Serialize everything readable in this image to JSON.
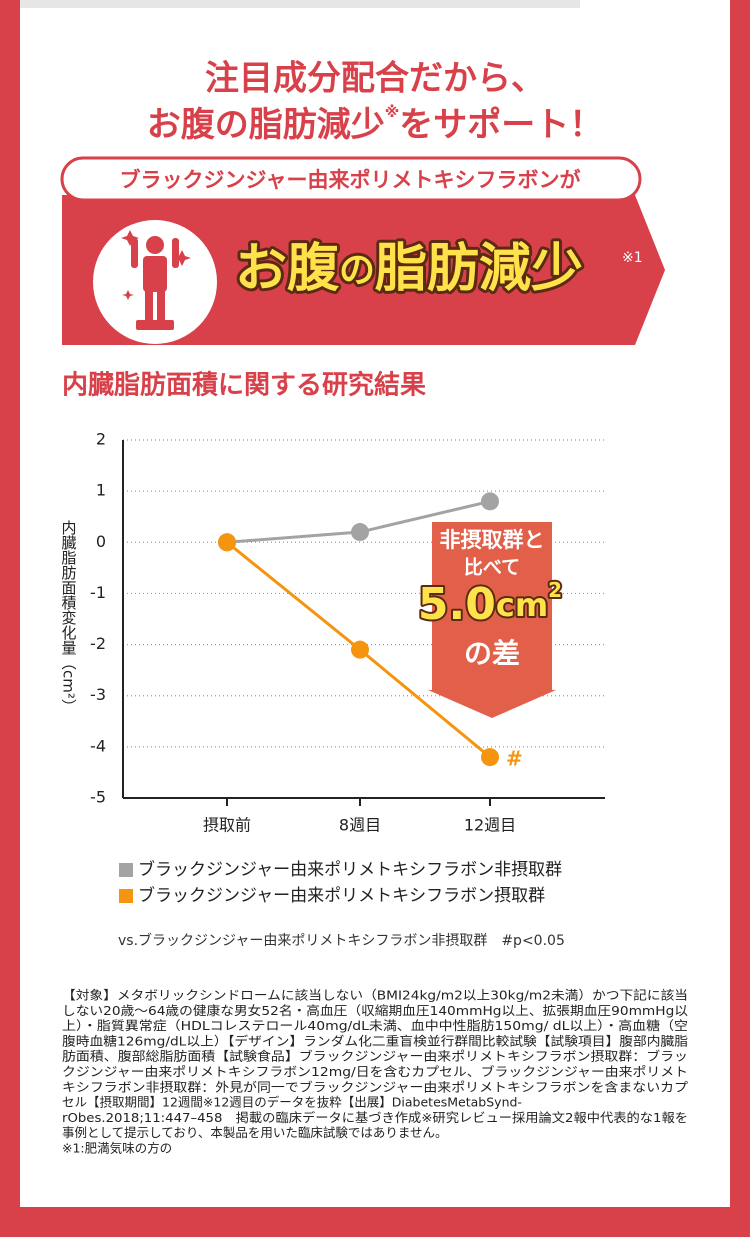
{
  "header": {
    "line1": "注目成分配合だから、",
    "line2a": "お腹の脂肪減少",
    "note_mark": "※",
    "line2b": "をサポート！"
  },
  "banner": {
    "subtitle": "ブラックジンジャー由来ポリメトキシフラボンが",
    "headline_a": "お腹",
    "headline_b": "の",
    "headline_c": "脂肪減少",
    "note": "※1"
  },
  "chart_data": {
    "type": "line",
    "title": "内臓脂肪面積に関する研究結果",
    "y_label": "内臓脂肪面積変化量（cm²）",
    "categories": [
      "摂取前",
      "8週目",
      "12週目"
    ],
    "series": [
      {
        "name": "ブラックジンジャー由来ポリメトキシフラボン非摂取群",
        "color": "#a3a3a3",
        "values": [
          0,
          0.2,
          0.8
        ]
      },
      {
        "name": "ブラックジンジャー由来ポリメトキシフラボン摂取群",
        "color": "#f5940f",
        "values": [
          0,
          -2.1,
          -4.2
        ]
      }
    ],
    "ylim": [
      -5,
      2
    ],
    "yticks": [
      2,
      1,
      0,
      -1,
      -2,
      -3,
      -4,
      -5
    ],
    "grid": true,
    "annotation": "#",
    "note": "vs.ブラックジンジャー由来ポリメトキシフラボン非摂取群　#p<0.05"
  },
  "callout": {
    "line1": "非摂取群と",
    "line2": "比べて",
    "value": "5.0",
    "unit": "cm",
    "sup": "2",
    "line3": "の差"
  },
  "footnotes": [
    "【対象】メタボリックシンドロームに該当しない（BMI24kg/m2以上30kg/m2未満）かつ下記に該当",
    "しない20歳〜64歳の健康な男女52名・高血圧（収縮期血圧140mmHg以上、拡張期血圧90mmHg以",
    "上）・脂質異常症（HDLコレステロール40mg/dL未満、血中中性脂肪150mg/ dL以上）・高血糖（空",
    "腹時血糖126mg/dL以上）【デザイン】ランダム化二重盲検並行群間比較試験【試験項目】腹部内臓脂",
    "肪面積、腹部総脂肪面積【試験食品】ブラックジンジャー由来ポリメトキシフラボン摂取群：ブラッ",
    "クジンジャー由来ポリメトキシフラボン12mg/日を含むカプセル、ブラックジンジャー由来ポリメト",
    "キシフラボン非摂取群：外見が同一でブラックジンジャー由来ポリメトキシフラボンを含まないカプ",
    "セル【摂取期間】12週間※12週目のデータを抜粋【出展】DiabetesMetabSynd-",
    "rObes.2018;11:447–458　掲載の臨床データに基づき作成※研究レビュー採用論文2報中代表的な1報を",
    "事例として提示しており、本製品を用いた臨床試験ではありません。",
    "※1:肥満気味の方の"
  ]
}
